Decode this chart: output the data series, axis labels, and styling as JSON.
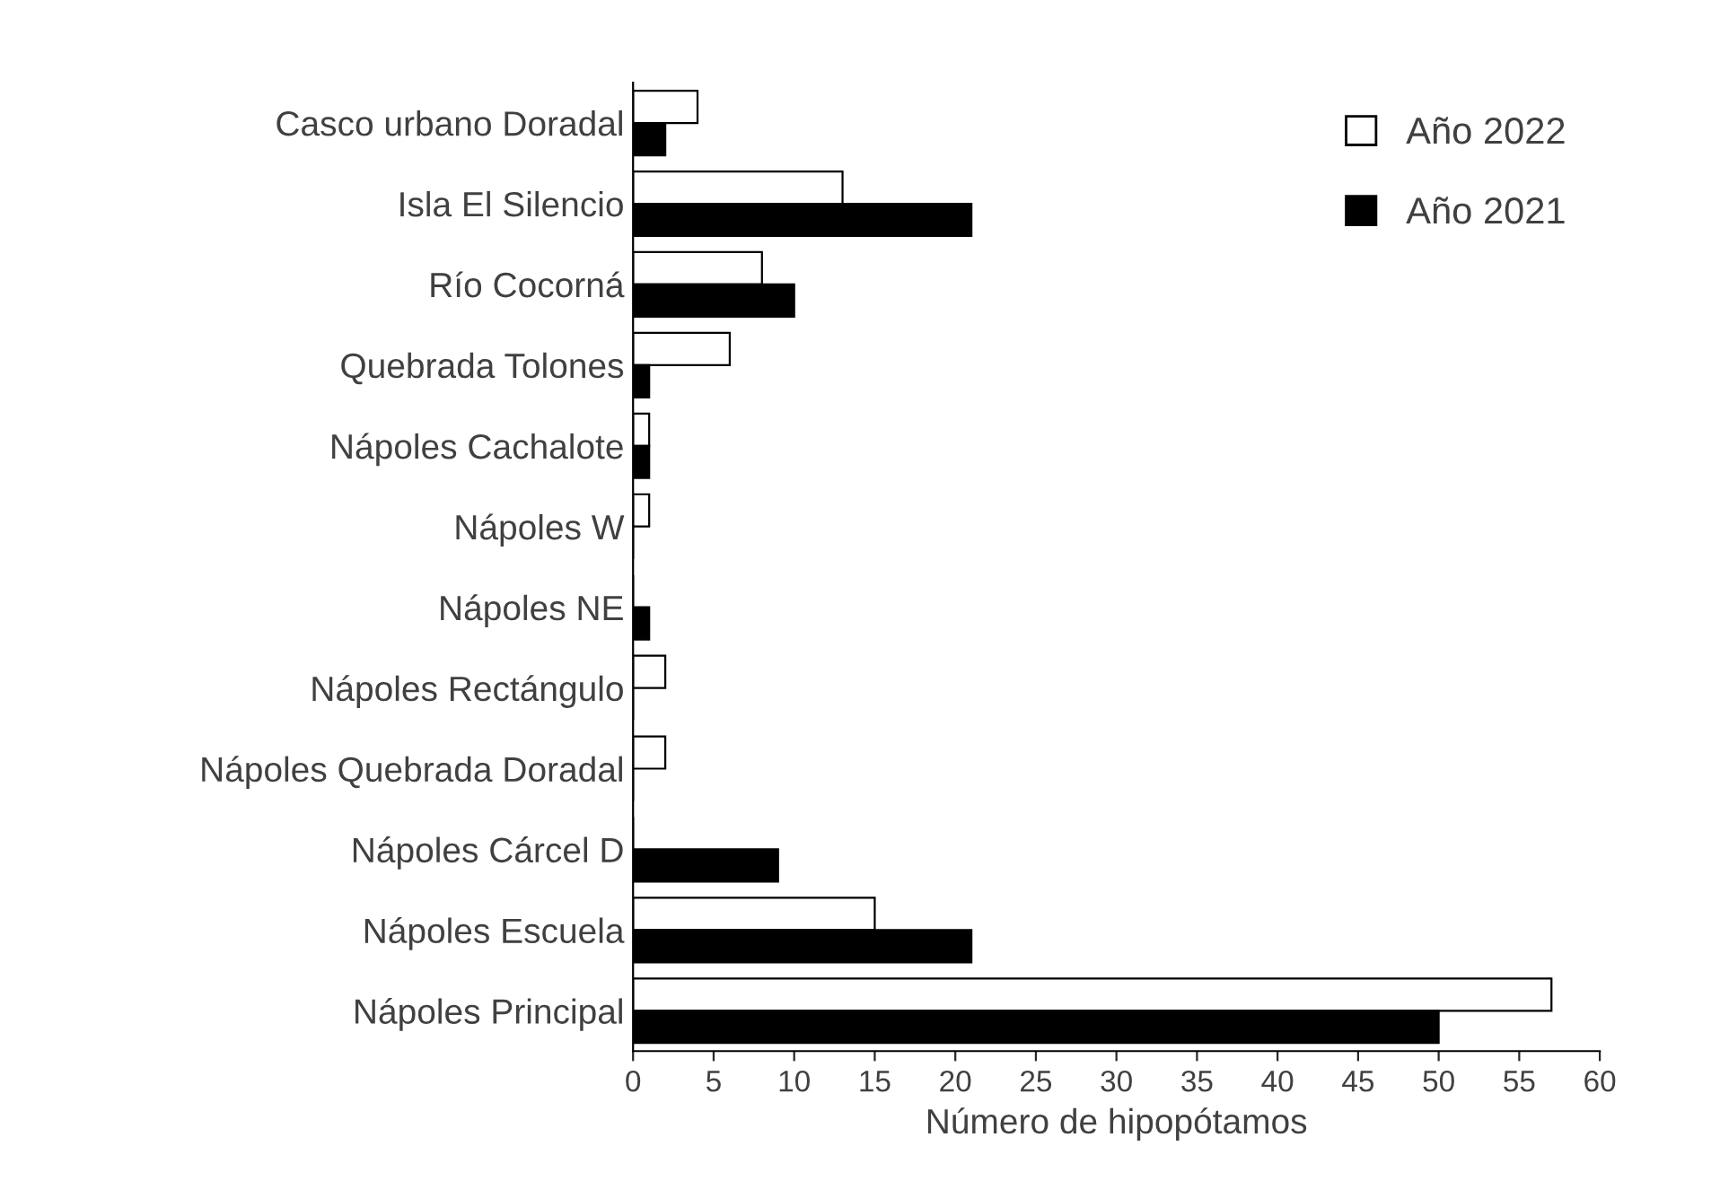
{
  "chart_data": {
    "type": "bar",
    "orientation": "horizontal",
    "xlabel": "Número de hipopótamos",
    "categories": [
      "Casco urbano Doradal",
      "Isla El Silencio",
      "Río Cocorná",
      "Quebrada Tolones",
      "Nápoles Cachalote",
      "Nápoles W",
      "Nápoles NE",
      "Nápoles Rectángulo",
      "Nápoles Quebrada Doradal",
      "Nápoles Cárcel D",
      "Nápoles Escuela",
      "Nápoles Principal"
    ],
    "series": [
      {
        "name": "Año 2022",
        "color": "#ffffff",
        "values": [
          4,
          13,
          8,
          6,
          1,
          1,
          0,
          2,
          2,
          0,
          15,
          57
        ]
      },
      {
        "name": "Año 2021",
        "color": "#000000",
        "values": [
          2,
          21,
          10,
          1,
          1,
          0,
          1,
          0,
          0,
          9,
          21,
          50
        ]
      }
    ],
    "xlim": [
      0,
      60
    ],
    "xticks": [
      0,
      5,
      10,
      15,
      20,
      25,
      30,
      35,
      40,
      45,
      50,
      55,
      60
    ],
    "grid": false,
    "legend": "top right"
  }
}
